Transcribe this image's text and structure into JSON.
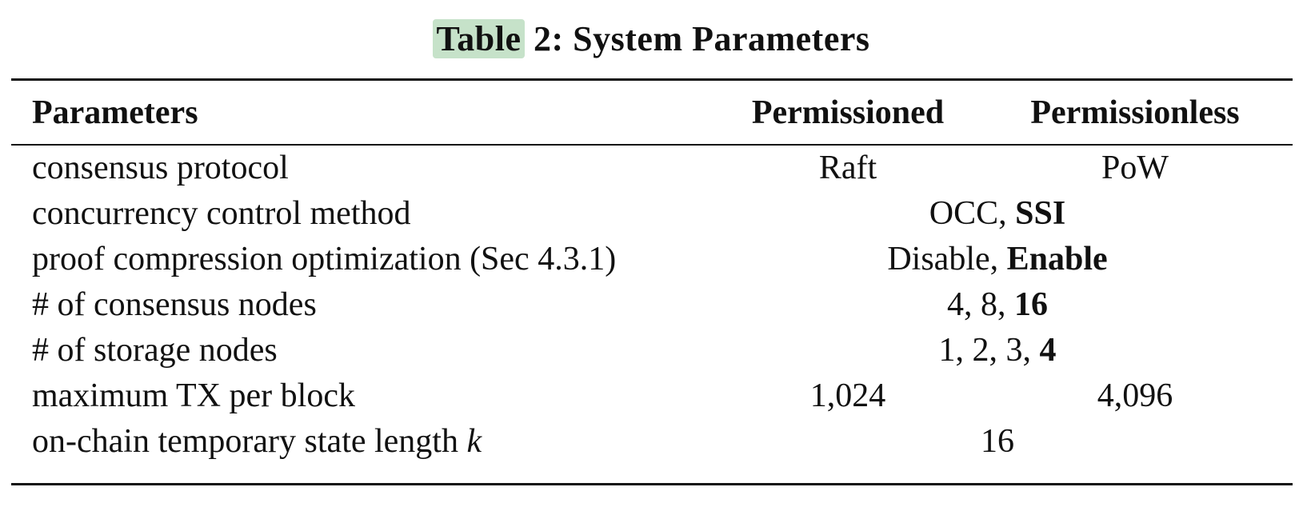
{
  "caption": {
    "highlighted": "Table",
    "rest": " 2: System Parameters"
  },
  "header": {
    "parameters": "Parameters",
    "permissioned": "Permissioned",
    "permissionless": "Permissionless"
  },
  "rows": [
    {
      "param": "consensus protocol",
      "permissioned": "Raft",
      "permissionless": "PoW"
    },
    {
      "param": "concurrency control method",
      "shared_plain": "OCC, ",
      "shared_bold": "SSI"
    },
    {
      "param": "proof compression optimization (Sec 4.3.1)",
      "shared_plain": "Disable, ",
      "shared_bold": "Enable"
    },
    {
      "param": "# of consensus nodes",
      "shared_plain": "4, 8, ",
      "shared_bold": "16"
    },
    {
      "param": "# of storage nodes",
      "shared_plain": "1, 2, 3, ",
      "shared_bold": "4"
    },
    {
      "param": "maximum TX per block",
      "permissioned": "1,024",
      "permissionless": "4,096"
    },
    {
      "param": "on-chain temporary state length ",
      "param_italic": "k",
      "shared_plain": "16"
    }
  ]
}
